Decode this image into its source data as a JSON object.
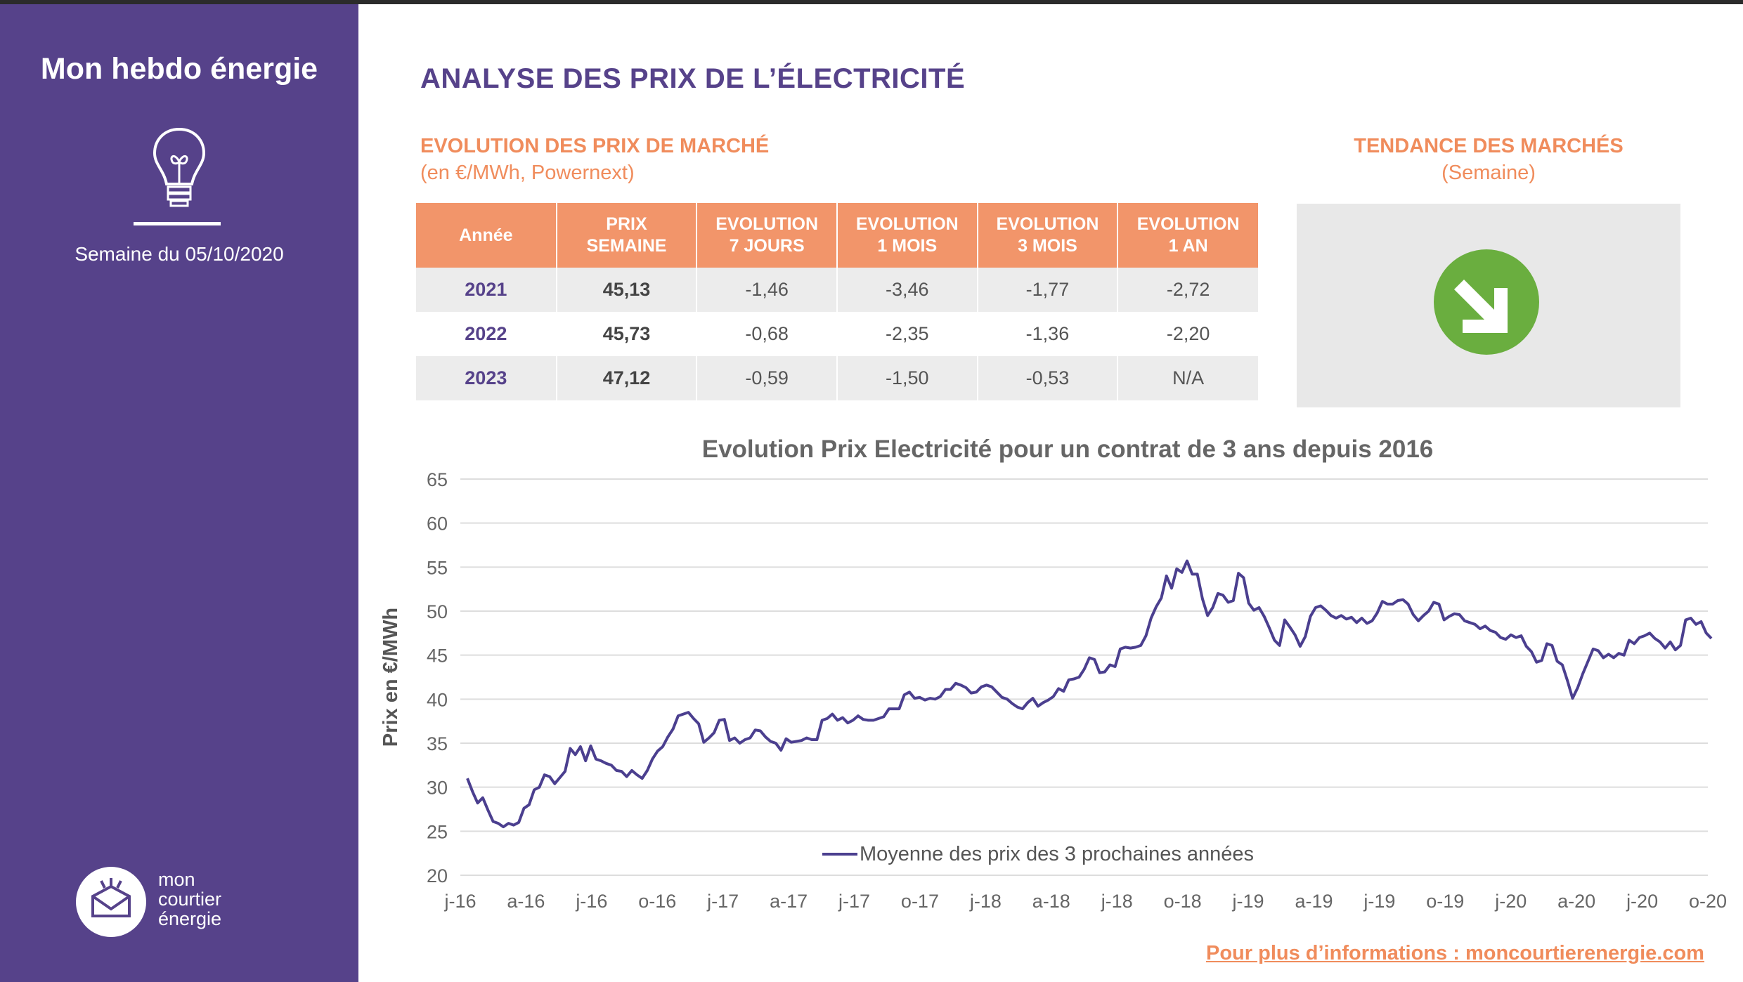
{
  "sidebar": {
    "title": "Mon hebdo énergie",
    "week": "Semaine du 05/10/2020",
    "logo_text": [
      "mon",
      "courtier",
      "énergie"
    ]
  },
  "page": {
    "title": "ANALYSE DES PRIX DE L’ÉLECTRICITÉ"
  },
  "market_section": {
    "title": "EVOLUTION DES PRIX DE MARCHÉ",
    "subtitle": "(en €/MWh, Powernext)"
  },
  "table": {
    "headers": [
      [
        "Année"
      ],
      [
        "PRIX",
        "SEMAINE"
      ],
      [
        "EVOLUTION",
        "7 JOURS"
      ],
      [
        "EVOLUTION",
        "1 MOIS"
      ],
      [
        "EVOLUTION",
        "3 MOIS"
      ],
      [
        "EVOLUTION",
        "1 AN"
      ]
    ],
    "rows": [
      [
        "2021",
        "45,13",
        "-1,46",
        "-3,46",
        "-1,77",
        "-2,72"
      ],
      [
        "2022",
        "45,73",
        "-0,68",
        "-2,35",
        "-1,36",
        "-2,20"
      ],
      [
        "2023",
        "47,12",
        "-0,59",
        "-1,50",
        "-0,53",
        "N/A"
      ]
    ]
  },
  "trend_section": {
    "title": "TENDANCE DES MARCHÉS",
    "subtitle": "(Semaine)",
    "icon": "arrow-down-right-icon",
    "direction": "down"
  },
  "colors": {
    "sidebar": "#56428a",
    "accent": "#f08c5c",
    "header_bg": "#f2956a",
    "line": "#4b3f8f",
    "trend_green": "#6aae3f"
  },
  "footer": {
    "link": "Pour plus d’informations : moncourtierenergie.com"
  },
  "chart_data": {
    "type": "line",
    "title": "Evolution Prix Electricité pour un contrat de 3 ans depuis 2016",
    "ylabel": "Prix en €/MWh",
    "xlabel": "",
    "ylim": [
      20,
      65
    ],
    "yticks": [
      20,
      25,
      30,
      35,
      40,
      45,
      50,
      55,
      60,
      65
    ],
    "xtick_labels": [
      "j-16",
      "a-16",
      "j-16",
      "o-16",
      "j-17",
      "a-17",
      "j-17",
      "o-17",
      "j-18",
      "a-18",
      "j-18",
      "o-18",
      "j-19",
      "a-19",
      "j-19",
      "o-19",
      "j-20",
      "a-20",
      "j-20",
      "o-20"
    ],
    "grid": true,
    "legend": "bottom-center",
    "series": [
      {
        "name": "Moyenne des prix des 3 prochaines années",
        "x_start": "2016-01",
        "x_end": "2020-10",
        "values": [
          31.0,
          29.5,
          28.2,
          28.8,
          27.4,
          26.1,
          25.9,
          25.5,
          25.9,
          25.7,
          26.0,
          27.6,
          28.0,
          29.7,
          30.0,
          31.4,
          31.2,
          30.4,
          31.1,
          31.8,
          34.4,
          33.7,
          34.6,
          33.0,
          34.7,
          33.2,
          33.0,
          32.7,
          32.5,
          31.9,
          31.8,
          31.2,
          31.9,
          31.4,
          31.0,
          31.9,
          33.2,
          34.1,
          34.6,
          35.7,
          36.6,
          38.1,
          38.3,
          38.5,
          37.8,
          37.2,
          35.1,
          35.6,
          36.2,
          37.6,
          37.7,
          35.3,
          35.6,
          35.0,
          35.4,
          35.6,
          36.5,
          36.4,
          35.7,
          35.2,
          35.0,
          34.2,
          35.5,
          35.1,
          35.2,
          35.3,
          35.6,
          35.4,
          35.4,
          37.6,
          37.8,
          38.3,
          37.6,
          37.9,
          37.3,
          37.6,
          38.1,
          37.7,
          37.6,
          37.6,
          37.8,
          38.0,
          38.9,
          38.9,
          38.9,
          40.5,
          40.8,
          40.1,
          40.2,
          39.9,
          40.1,
          40.0,
          40.3,
          41.1,
          41.1,
          41.8,
          41.6,
          41.3,
          40.7,
          40.8,
          41.4,
          41.6,
          41.4,
          40.8,
          40.2,
          40.0,
          39.5,
          39.1,
          38.9,
          39.6,
          40.1,
          39.2,
          39.6,
          39.9,
          40.3,
          41.2,
          40.9,
          42.2,
          42.3,
          42.5,
          43.4,
          44.7,
          44.5,
          43.0,
          43.1,
          43.9,
          43.7,
          45.7,
          45.9,
          45.8,
          45.9,
          46.1,
          47.2,
          49.2,
          50.5,
          51.5,
          54.0,
          52.6,
          54.8,
          54.4,
          55.7,
          54.2,
          54.2,
          51.4,
          49.5,
          50.4,
          52.0,
          51.8,
          51.0,
          51.2,
          54.3,
          53.8,
          50.9,
          50.1,
          50.4,
          49.4,
          48.1,
          46.7,
          46.1,
          49.0,
          48.2,
          47.3,
          46.0,
          47.1,
          49.4,
          50.4,
          50.6,
          50.1,
          49.5,
          49.2,
          49.5,
          49.1,
          49.3,
          48.7,
          49.2,
          48.6,
          48.9,
          49.8,
          51.1,
          50.8,
          50.8,
          51.2,
          51.3,
          50.8,
          49.6,
          48.9,
          49.5,
          50.0,
          51.0,
          50.8,
          49.0,
          49.4,
          49.7,
          49.6,
          48.9,
          48.7,
          48.5,
          48.0,
          48.3,
          47.8,
          47.6,
          47.0,
          46.8,
          47.3,
          47.0,
          47.2,
          46.0,
          45.4,
          44.2,
          44.4,
          46.3,
          46.1,
          44.3,
          43.9,
          42.1,
          40.1,
          41.3,
          42.9,
          44.3,
          45.7,
          45.5,
          44.7,
          45.1,
          44.7,
          45.2,
          45.0,
          46.7,
          46.3,
          47.0,
          47.2,
          47.5,
          46.9,
          46.5,
          45.8,
          46.5,
          45.6,
          46.1,
          49.0,
          49.2,
          48.5,
          48.8,
          47.5,
          46.9
        ]
      }
    ]
  }
}
